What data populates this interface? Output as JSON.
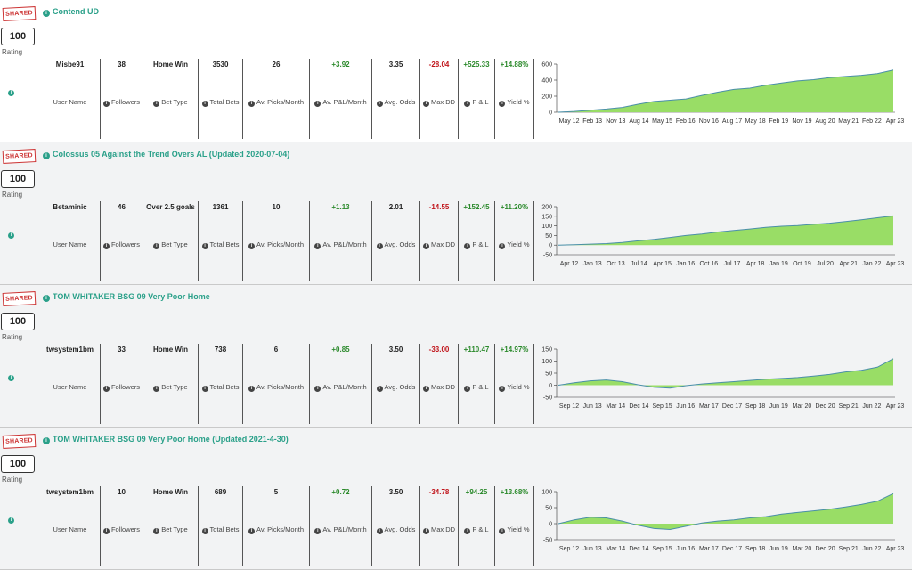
{
  "labels": {
    "shared": "SHARED",
    "rating": "Rating",
    "user_name": "User Name",
    "followers": "Followers",
    "bet_type": "Bet Type",
    "total_bets": "Total Bets",
    "av_picks": "Av. Picks/Month",
    "av_pnl": "Av. P&L/Month",
    "avg_odds": "Avg. Odds",
    "max_dd": "Max DD",
    "pnl": "P & L",
    "yield": "Yield %"
  },
  "colors": {
    "title": "#2aa089",
    "positive": "#2c8a2c",
    "negative": "#c0141a",
    "chart_fill": "#99dd66",
    "chart_line": "#4a8fa8"
  },
  "cards": [
    {
      "title": "Contend UD",
      "rating": "100",
      "user": "Misbe91",
      "followers": "38",
      "bet_type": "Home Win",
      "total_bets": "3530",
      "av_picks": "26",
      "av_pnl": "+3.92",
      "avg_odds": "3.35",
      "max_dd": "-28.04",
      "pnl": "+525.33",
      "yield": "+14.88%",
      "chart_data": {
        "type": "area",
        "y_ticks": [
          "600",
          "400",
          "200",
          "0"
        ],
        "ylim": [
          0,
          600
        ],
        "x_ticks": [
          "May 12",
          "Feb 13",
          "Nov 13",
          "Aug 14",
          "May 15",
          "Feb 16",
          "Nov 16",
          "Aug 17",
          "May 18",
          "Feb 19",
          "Nov 19",
          "Aug 20",
          "May 21",
          "Feb 22",
          "Apr 23"
        ],
        "values": [
          0,
          10,
          25,
          40,
          60,
          100,
          135,
          150,
          165,
          210,
          250,
          285,
          300,
          335,
          365,
          390,
          405,
          430,
          445,
          460,
          480,
          525
        ]
      }
    },
    {
      "title": "Colossus 05 Against the Trend Overs AL (Updated 2020-07-04)",
      "rating": "100",
      "user": "Betaminic",
      "followers": "46",
      "bet_type": "Over 2.5 goals",
      "total_bets": "1361",
      "av_picks": "10",
      "av_pnl": "+1.13",
      "avg_odds": "2.01",
      "max_dd": "-14.55",
      "pnl": "+152.45",
      "yield": "+11.20%",
      "chart_data": {
        "type": "area",
        "y_ticks": [
          "200",
          "150",
          "100",
          "50",
          "0",
          "-50"
        ],
        "ylim": [
          -50,
          200
        ],
        "x_ticks": [
          "Apr 12",
          "Jan 13",
          "Oct 13",
          "Jul 14",
          "Apr 15",
          "Jan 16",
          "Oct 16",
          "Jul 17",
          "Apr 18",
          "Jan 19",
          "Oct 19",
          "Jul 20",
          "Apr 21",
          "Jan 22",
          "Apr 23"
        ],
        "values": [
          0,
          2,
          5,
          8,
          14,
          22,
          30,
          40,
          50,
          58,
          68,
          76,
          84,
          92,
          98,
          102,
          108,
          114,
          122,
          132,
          142,
          152
        ]
      }
    },
    {
      "title": "TOM WHITAKER BSG 09 Very Poor Home",
      "rating": "100",
      "user": "twsystem1bm",
      "followers": "33",
      "bet_type": "Home Win",
      "total_bets": "738",
      "av_picks": "6",
      "av_pnl": "+0.85",
      "avg_odds": "3.50",
      "max_dd": "-33.00",
      "pnl": "+110.47",
      "yield": "+14.97%",
      "chart_data": {
        "type": "area",
        "y_ticks": [
          "150",
          "100",
          "50",
          "0",
          "-50"
        ],
        "ylim": [
          -50,
          150
        ],
        "x_ticks": [
          "Sep 12",
          "Jun 13",
          "Mar 14",
          "Dec 14",
          "Sep 15",
          "Jun 16",
          "Mar 17",
          "Dec 17",
          "Sep 18",
          "Jun 19",
          "Mar 20",
          "Dec 20",
          "Sep 21",
          "Jun 22",
          "Apr 23"
        ],
        "values": [
          0,
          10,
          18,
          22,
          15,
          2,
          -8,
          -12,
          -2,
          5,
          10,
          15,
          20,
          25,
          28,
          32,
          38,
          45,
          55,
          62,
          75,
          110
        ]
      }
    },
    {
      "title": "TOM WHITAKER BSG 09 Very Poor Home (Updated 2021-4-30)",
      "rating": "100",
      "user": "twsystem1bm",
      "followers": "10",
      "bet_type": "Home Win",
      "total_bets": "689",
      "av_picks": "5",
      "av_pnl": "+0.72",
      "avg_odds": "3.50",
      "max_dd": "-34.78",
      "pnl": "+94.25",
      "yield": "+13.68%",
      "chart_data": {
        "type": "area",
        "y_ticks": [
          "100",
          "50",
          "0",
          "-50"
        ],
        "ylim": [
          -50,
          100
        ],
        "x_ticks": [
          "Sep 12",
          "Jun 13",
          "Mar 14",
          "Dec 14",
          "Sep 15",
          "Jun 16",
          "Mar 17",
          "Dec 17",
          "Sep 18",
          "Jun 19",
          "Mar 20",
          "Dec 20",
          "Sep 21",
          "Jun 22",
          "Apr 23"
        ],
        "values": [
          0,
          12,
          20,
          18,
          8,
          -5,
          -15,
          -18,
          -8,
          2,
          8,
          12,
          18,
          22,
          30,
          35,
          40,
          45,
          52,
          60,
          70,
          94
        ]
      }
    }
  ]
}
